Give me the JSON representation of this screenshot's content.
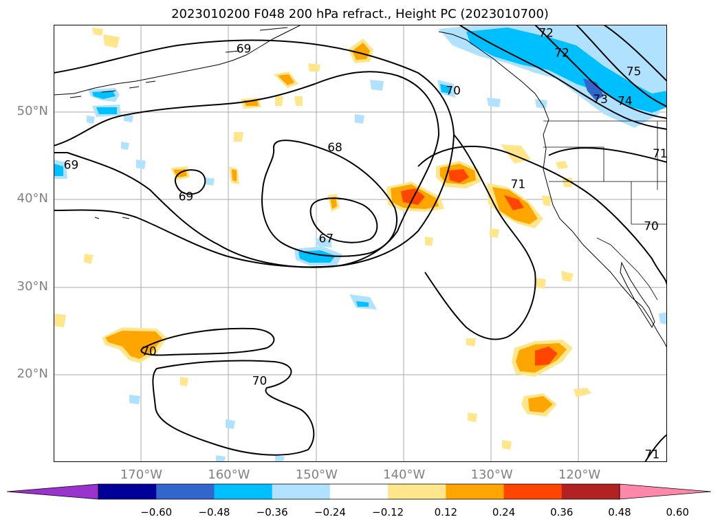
{
  "title": "2023010200 F048 200 hPa refract., Height PC (2023010700)",
  "map": {
    "lon_range": [
      -180,
      -110
    ],
    "lat_range": [
      10,
      60
    ],
    "lat_labels": [
      {
        "lat": 50,
        "text": "50°N"
      },
      {
        "lat": 40,
        "text": "40°N"
      },
      {
        "lat": 30,
        "text": "30°N"
      },
      {
        "lat": 20,
        "text": "20°N"
      }
    ],
    "lon_labels": [
      {
        "lon": -170,
        "text": "170°W"
      },
      {
        "lon": -160,
        "text": "160°W"
      },
      {
        "lon": -150,
        "text": "150°W"
      },
      {
        "lon": -140,
        "text": "140°W"
      },
      {
        "lon": -130,
        "text": "130°W"
      },
      {
        "lon": -120,
        "text": "120°W"
      }
    ],
    "contour_labels": [
      {
        "text": "69",
        "lon": -158.3,
        "lat": 57.3
      },
      {
        "text": "72",
        "lon": -123.8,
        "lat": 59.1
      },
      {
        "text": "72",
        "lon": -122.0,
        "lat": 56.8
      },
      {
        "text": "75",
        "lon": -113.8,
        "lat": 54.7
      },
      {
        "text": "73",
        "lon": -117.6,
        "lat": 51.5
      },
      {
        "text": "74",
        "lon": -114.8,
        "lat": 51.3
      },
      {
        "text": "70",
        "lon": -134.4,
        "lat": 52.5
      },
      {
        "text": "68",
        "lon": -147.9,
        "lat": 46.0
      },
      {
        "text": "69",
        "lon": -178.0,
        "lat": 44.0
      },
      {
        "text": "69",
        "lon": -164.9,
        "lat": 40.4
      },
      {
        "text": "71",
        "lon": -127.0,
        "lat": 41.8
      },
      {
        "text": "71",
        "lon": -110.8,
        "lat": 45.3
      },
      {
        "text": "70",
        "lon": -111.8,
        "lat": 37.0
      },
      {
        "text": "67",
        "lon": -148.9,
        "lat": 35.6
      },
      {
        "text": "70",
        "lon": -169.1,
        "lat": 22.7
      },
      {
        "text": "70",
        "lon": -156.5,
        "lat": 19.3
      },
      {
        "text": "71",
        "lon": -111.7,
        "lat": 10.9
      }
    ]
  },
  "colorbar": {
    "colors": [
      "#9933cc",
      "#000099",
      "#3366cc",
      "#00bfff",
      "#b0e2ff",
      "#ffffff",
      "#ffe68c",
      "#ffa500",
      "#ff4500",
      "#b22222",
      "#ff88aa"
    ],
    "ticks": [
      "−0.60",
      "−0.48",
      "−0.36",
      "−0.24",
      "−0.12",
      "0.12",
      "0.24",
      "0.36",
      "0.48",
      "0.60"
    ]
  }
}
